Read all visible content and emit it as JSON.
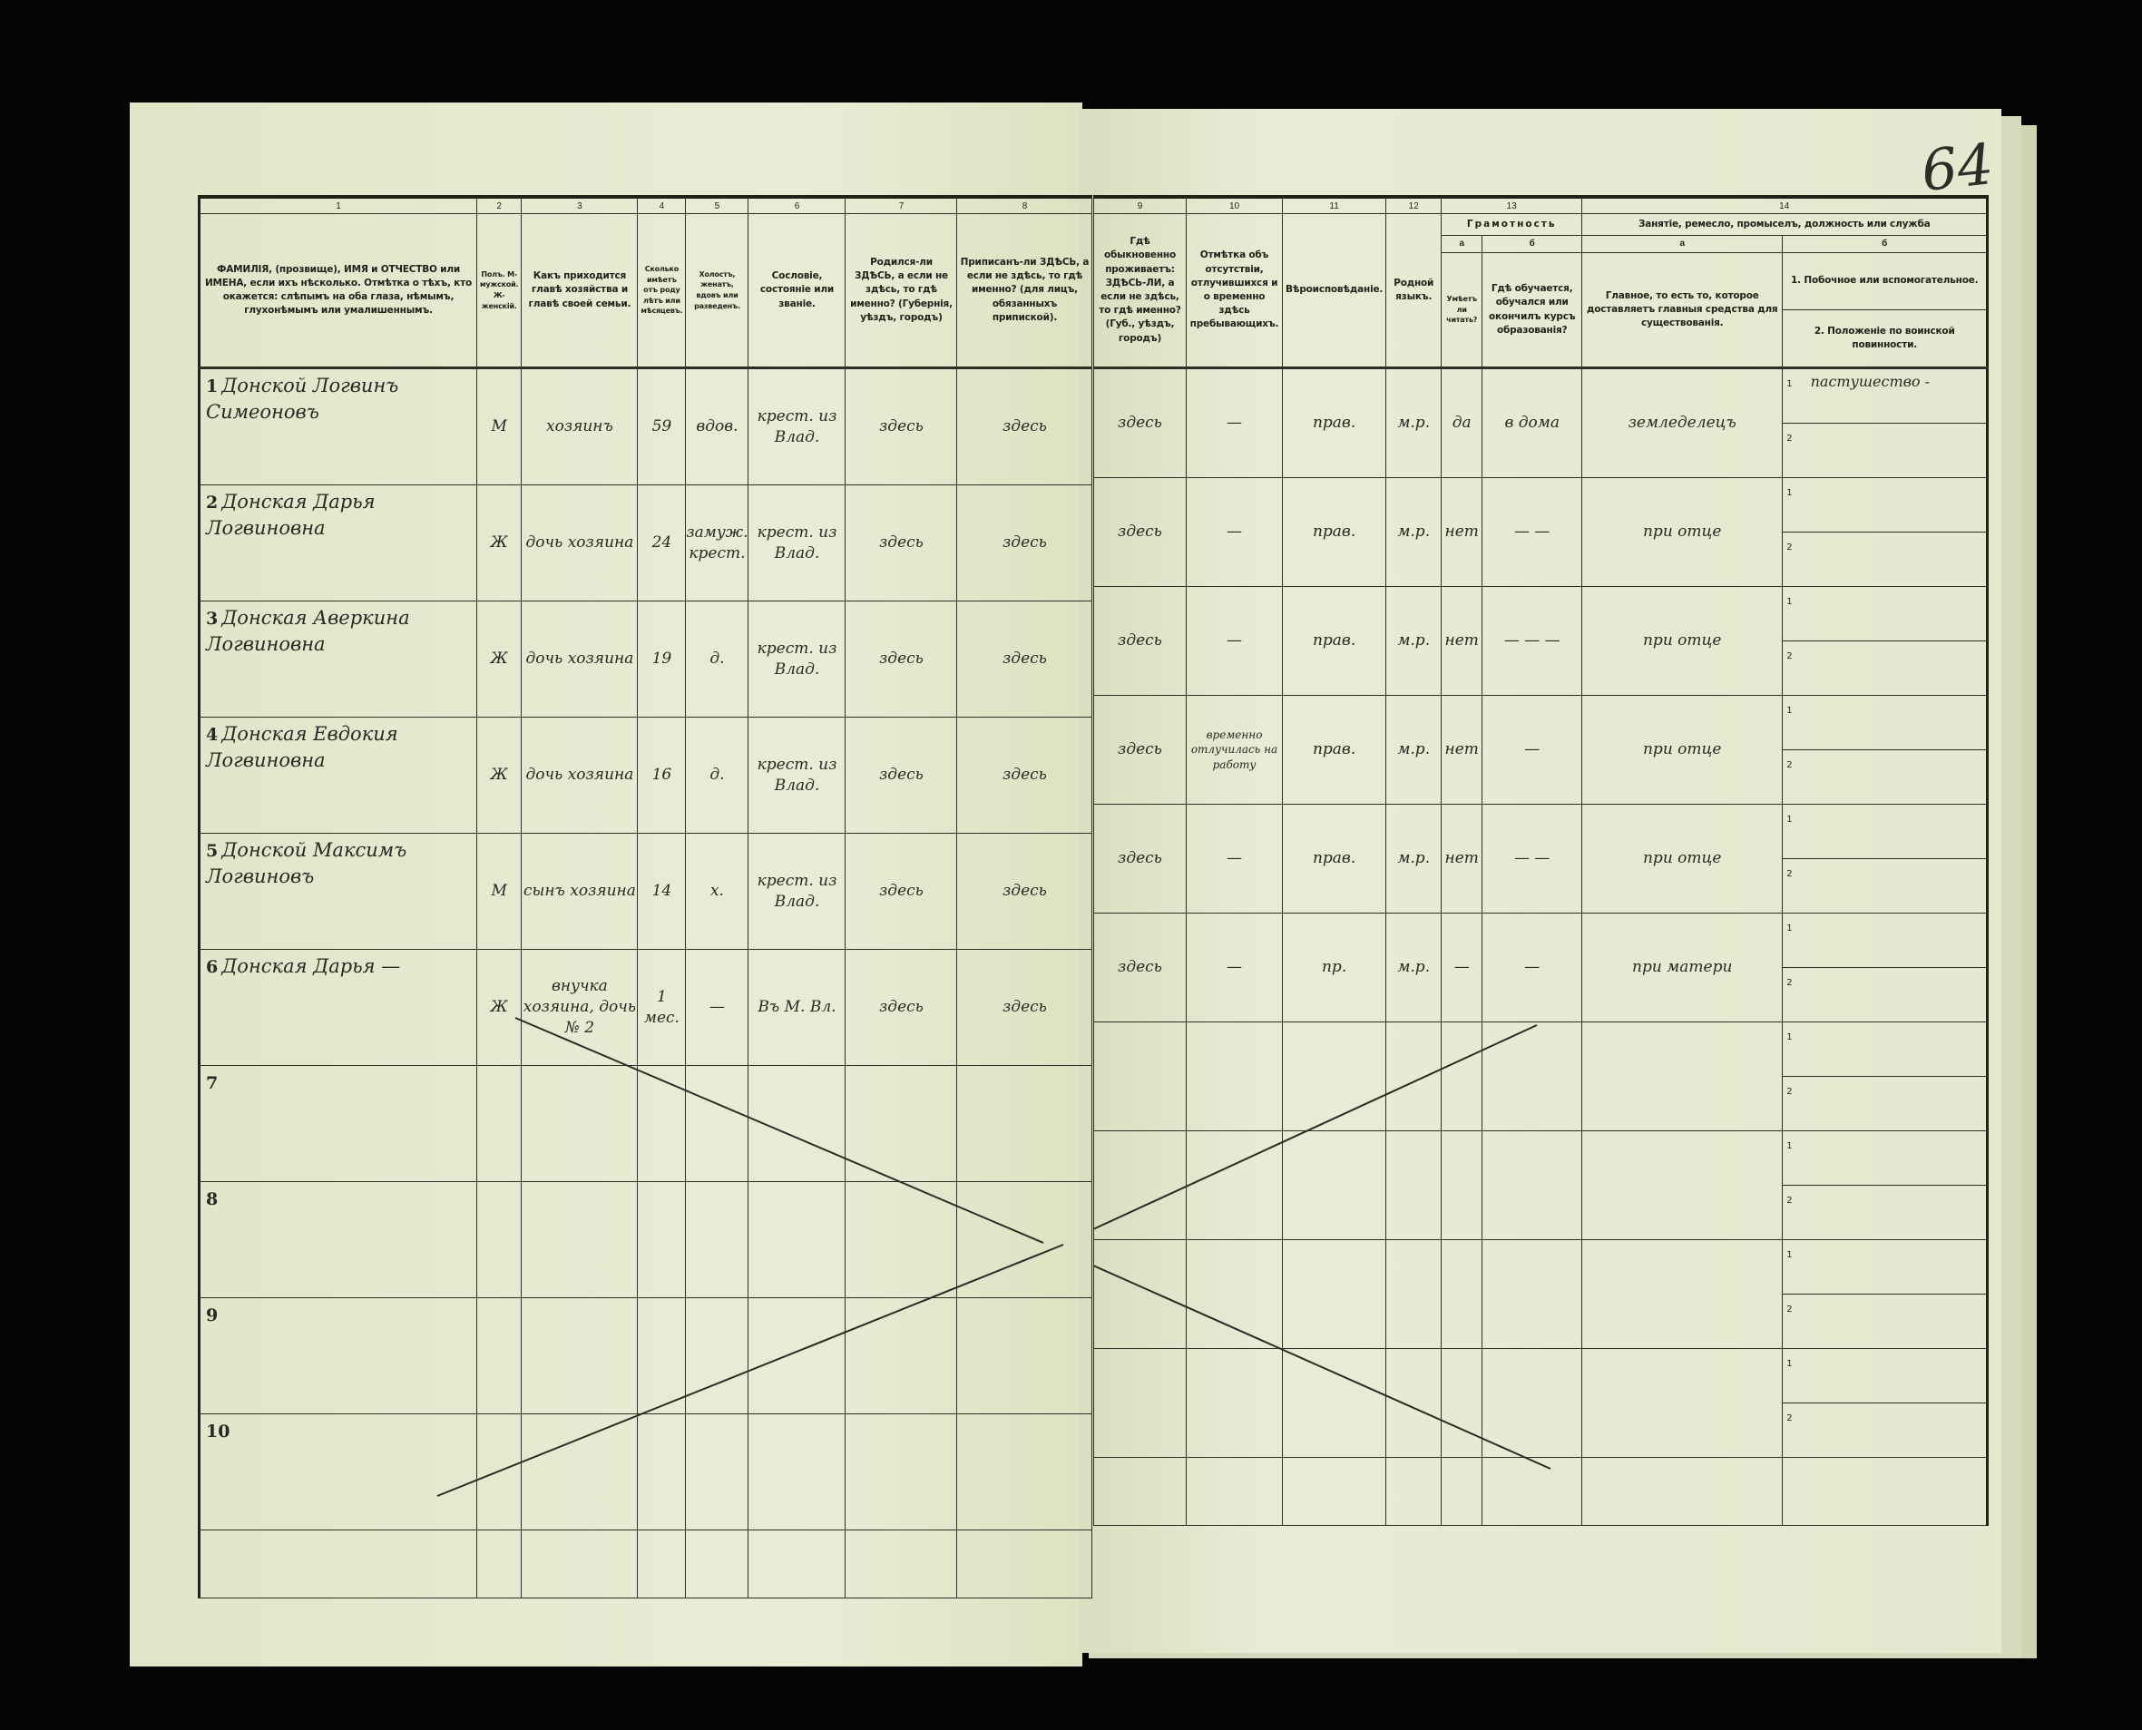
{
  "page_number": "64",
  "columns_left": {
    "numbers": [
      "1",
      "2",
      "3",
      "4",
      "5",
      "6",
      "7",
      "8"
    ],
    "headers": [
      "ФАМИЛІЯ, (прозвище), ИМЯ и ОТЧЕСТВО или ИМЕНА, если ихъ нѣсколько. Отмѣтка о тѣхъ, кто окажется: слѣпымъ на оба глаза, нѣмымъ, глухонѣмымъ или умалишеннымъ.",
      "Полъ. М-мужской. Ж-женскій.",
      "Какъ приходится главѣ хозяйства и главѣ своей семьи.",
      "Сколько имѣетъ отъ роду лѣтъ или мѣсяцевъ.",
      "Холостъ, женатъ, вдовъ или разведенъ.",
      "Сословіе, состояніе или званіе.",
      "Родился-ли ЗДѢСЬ, а если не здѣсь, то гдѣ именно? (Губернія, уѣздъ, городъ)",
      "Приписанъ-ли ЗДѢСЬ, а если не здѣсь, то гдѣ именно? (для лицъ, обязанныхъ припиской)."
    ]
  },
  "columns_right": {
    "numbers": [
      "9",
      "10",
      "11",
      "12",
      "13",
      "14"
    ],
    "headers": [
      "Гдѣ обыкновенно проживаетъ: ЗДѢСЬ-ЛИ, а если не здѣсь, то гдѣ именно? (Губ., уѣздъ, городъ)",
      "Отмѣтка объ отсутствіи, отлучившихся и о временно здѣсь пребывающихъ.",
      "Вѣроисповѣданіе.",
      "Родной языкъ."
    ],
    "literacy": {
      "title": "Грамотность",
      "a": "а",
      "b": "б",
      "a_text": "Умѣетъ ли читать?",
      "b_text": "Гдѣ обучается, обучался или окончилъ курсъ образованія?"
    },
    "occupation": {
      "title": "Занятіе, ремесло, промыселъ, должность или служба",
      "a": "а",
      "b": "б",
      "a_text": "Главное, то есть то, которое доставляетъ главныя средства для существованія.",
      "b1_text": "1. Побочное или вспомогательное.",
      "b2_text": "2. Положеніе по воинской повинности."
    }
  },
  "rows": [
    {
      "num": "1",
      "name": "Донской Логвинъ Симеоновъ",
      "sex": "М",
      "relation": "хозяинъ",
      "age": "59",
      "marital": "вдов.",
      "estate": "крест. из Влад.",
      "born": "здесь",
      "registered": "здесь",
      "residence": "здесь",
      "absence": "—",
      "religion": "прав.",
      "language": "м.р.",
      "literate": "да",
      "education": "в дома",
      "occupation": "земледелецъ",
      "sub1": "пастушество -",
      "sub2": ""
    },
    {
      "num": "2",
      "name": "Донская Дарья Логвиновна",
      "sex": "Ж",
      "relation": "дочь хозяина",
      "age": "24",
      "marital": "замуж. крест.",
      "estate": "крест. из Влад.",
      "born": "здесь",
      "registered": "здесь",
      "residence": "здесь",
      "absence": "—",
      "religion": "прав.",
      "language": "м.р.",
      "literate": "нет",
      "education": "— —",
      "occupation": "при отце",
      "sub1": "",
      "sub2": ""
    },
    {
      "num": "3",
      "name": "Донская Аверкина Логвиновна",
      "sex": "Ж",
      "relation": "дочь хозяина",
      "age": "19",
      "marital": "д.",
      "estate": "крест. из Влад.",
      "born": "здесь",
      "registered": "здесь",
      "residence": "здесь",
      "absence": "—",
      "religion": "прав.",
      "language": "м.р.",
      "literate": "нет",
      "education": "— — —",
      "occupation": "при отце",
      "sub1": "",
      "sub2": ""
    },
    {
      "num": "4",
      "name": "Донская Евдокия Логвиновна",
      "sex": "Ж",
      "relation": "дочь хозяина",
      "age": "16",
      "marital": "д.",
      "estate": "крест. из Влад.",
      "born": "здесь",
      "registered": "здесь",
      "residence": "здесь",
      "absence": "временно отлучилась на работу",
      "religion": "прав.",
      "language": "м.р.",
      "literate": "нет",
      "education": "—",
      "occupation": "при отце",
      "sub1": "",
      "sub2": ""
    },
    {
      "num": "5",
      "name": "Донской Максимъ Логвиновъ",
      "sex": "М",
      "relation": "сынъ хозяина",
      "age": "14",
      "marital": "х.",
      "estate": "крест. из Влад.",
      "born": "здесь",
      "registered": "здесь",
      "residence": "здесь",
      "absence": "—",
      "religion": "прав.",
      "language": "м.р.",
      "literate": "нет",
      "education": "— —",
      "occupation": "при отце",
      "sub1": "",
      "sub2": ""
    },
    {
      "num": "6",
      "name": "Донская Дарья —",
      "sex": "Ж",
      "relation": "внучка хозяина, дочь № 2",
      "age": "1 мес.",
      "marital": "—",
      "estate": "Въ М. Вл.",
      "born": "здесь",
      "registered": "здесь",
      "residence": "здесь",
      "absence": "—",
      "religion": "пр.",
      "language": "м.р.",
      "literate": "—",
      "education": "—",
      "occupation": "при матери",
      "sub1": "",
      "sub2": ""
    },
    {
      "num": "7"
    },
    {
      "num": "8"
    },
    {
      "num": "9"
    },
    {
      "num": "10"
    }
  ],
  "colors": {
    "paper": "#e6ead2",
    "ink": "#262a22",
    "background": "#050505"
  }
}
